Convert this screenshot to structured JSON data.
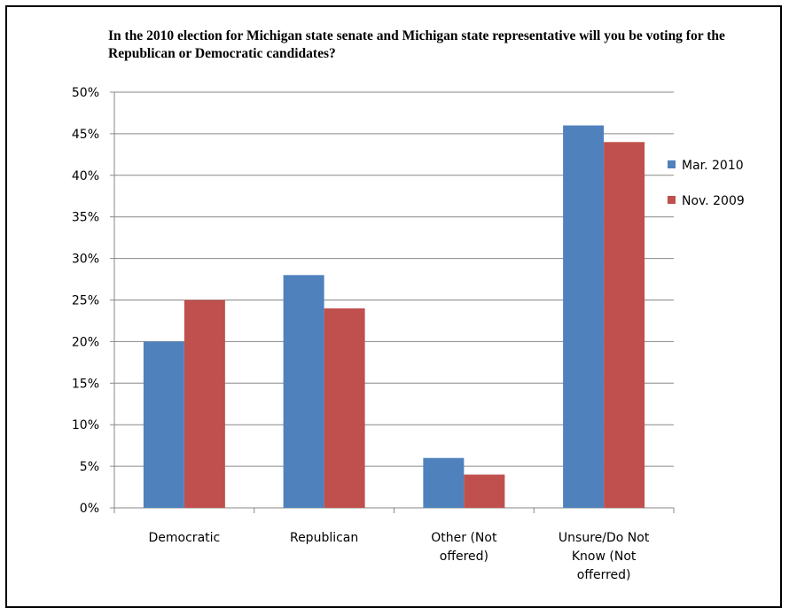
{
  "chart_data": {
    "type": "bar",
    "title": "In the 2010 election for Michigan state senate and Michigan state representative will you be voting for the Republican or Democratic candidates?",
    "categories": [
      [
        "Democratic"
      ],
      [
        "Republican"
      ],
      [
        "Other (Not",
        "offered)"
      ],
      [
        "Unsure/Do Not",
        "Know (Not",
        "offerred)"
      ]
    ],
    "series": [
      {
        "name": "Mar. 2010",
        "color": "#4f81bd",
        "values": [
          20,
          28,
          6,
          46
        ]
      },
      {
        "name": "Nov. 2009",
        "color": "#c0504d",
        "values": [
          25,
          24,
          4,
          44
        ]
      }
    ],
    "ylim": [
      0,
      50
    ],
    "yticks": [
      0,
      5,
      10,
      15,
      20,
      25,
      30,
      35,
      40,
      45,
      50
    ],
    "tick_suffix": "%",
    "grid": true,
    "legend_position": "right"
  }
}
